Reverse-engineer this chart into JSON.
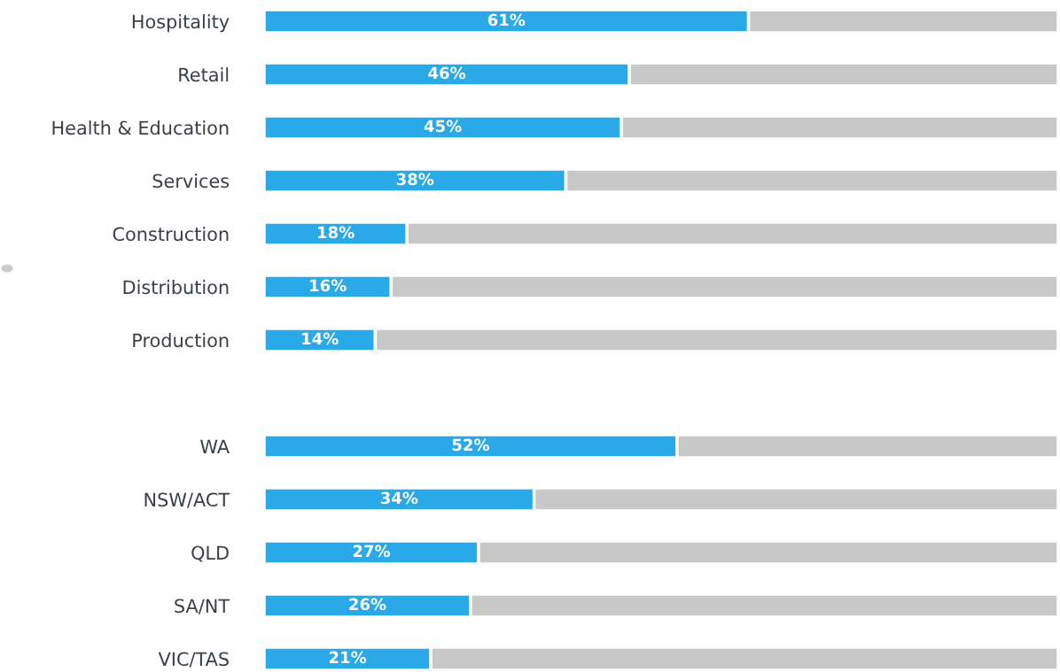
{
  "chart_data": [
    {
      "type": "bar",
      "orientation": "horizontal",
      "stacked": true,
      "categories": [
        "Hospitality",
        "Retail",
        "Health & Education",
        "Services",
        "Construction",
        "Distribution",
        "Production"
      ],
      "xlim": [
        0,
        100
      ],
      "tick_labels": "y",
      "grid": false,
      "legend": false,
      "series": [
        {
          "color": "#29a9e8",
          "values": [
            61,
            46,
            45,
            38,
            18,
            16,
            14
          ],
          "value_labels": [
            "61%",
            "46%",
            "45%",
            "38%",
            "18%",
            "16%",
            "14%"
          ]
        },
        {
          "color": "#c8c8c8",
          "values": [
            39,
            54,
            55,
            62,
            82,
            84,
            86
          ]
        }
      ]
    },
    {
      "type": "bar",
      "orientation": "horizontal",
      "stacked": true,
      "categories": [
        "WA",
        "NSW/ACT",
        "QLD",
        "SA/NT",
        "VIC/TAS"
      ],
      "xlim": [
        0,
        100
      ],
      "tick_labels": "y",
      "grid": false,
      "legend": false,
      "series": [
        {
          "color": "#29a9e8",
          "values": [
            52,
            34,
            27,
            26,
            21
          ],
          "value_labels": [
            "52%",
            "34%",
            "27%",
            "26%",
            "21%"
          ]
        },
        {
          "color": "#c8c8c8",
          "values": [
            48,
            66,
            73,
            74,
            79
          ]
        }
      ]
    }
  ]
}
